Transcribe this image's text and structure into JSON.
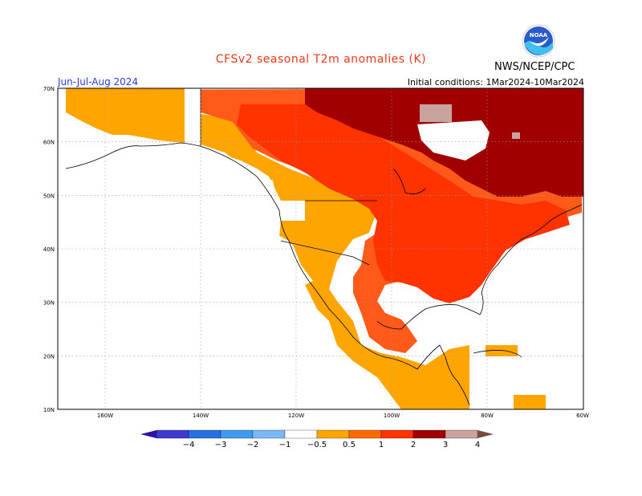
{
  "header": {
    "title": "CFSv2 seasonal T2m anomalies (K)",
    "title_color": "#e53a1a",
    "agency": "NWS/NCEP/CPC",
    "season": "Jun-Jul-Aug 2024",
    "season_color": "#2a3fd6",
    "initial_conditions": "Initial conditions: 1Mar2024-10Mar2024",
    "logo_text": "NOAA"
  },
  "axes": {
    "lat_labels": [
      "70N",
      "60N",
      "50N",
      "40N",
      "30N",
      "20N",
      "10N"
    ],
    "lon_labels": [
      "160W",
      "140W",
      "120W",
      "100W",
      "80W",
      "60W"
    ]
  },
  "colorbar": {
    "colors": [
      "#2b13a8",
      "#3c3ad1",
      "#2a6fe0",
      "#3f9af0",
      "#7ab9f5",
      "#ffffff",
      "#ffa500",
      "#ff6a00",
      "#ff3300",
      "#a00000",
      "#c9a39e",
      "#7a4a3a"
    ],
    "labels": [
      "−4",
      "−3",
      "−2",
      "−1",
      "−0.5",
      "0.5",
      "1",
      "2",
      "3",
      "4"
    ]
  },
  "legend_colors": {
    "c05": "#ffa500",
    "c1": "#ff6a1a",
    "c2": "#ff3300",
    "c3": "#a00000",
    "c4": "#c9a39e"
  }
}
